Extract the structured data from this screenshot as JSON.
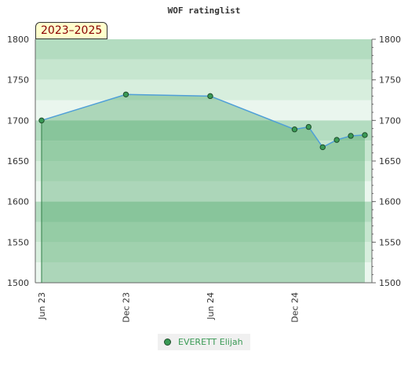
{
  "chart_data": {
    "type": "line",
    "title": "WOF ratinglist",
    "period_label": "2023–2025",
    "x_tick_labels": [
      "Jun 23",
      "Dec 23",
      "Jun 24",
      "Dec 24"
    ],
    "x_tick_months": [
      0,
      6,
      12,
      18
    ],
    "ylim": [
      1500,
      1800
    ],
    "y_ticks": [
      1500,
      1550,
      1600,
      1650,
      1700,
      1750,
      1800
    ],
    "series": [
      {
        "name": "EVERETT Elijah",
        "color": "#3a9a55",
        "points": [
          {
            "m": 0,
            "y": 1700
          },
          {
            "m": 6,
            "y": 1732
          },
          {
            "m": 12,
            "y": 1730
          },
          {
            "m": 18,
            "y": 1689
          },
          {
            "m": 19,
            "y": 1692
          },
          {
            "m": 20,
            "y": 1667
          },
          {
            "m": 21,
            "y": 1676
          },
          {
            "m": 22,
            "y": 1681
          },
          {
            "m": 23,
            "y": 1682
          }
        ]
      }
    ],
    "grid": true,
    "legend_position": "bottom-center"
  }
}
